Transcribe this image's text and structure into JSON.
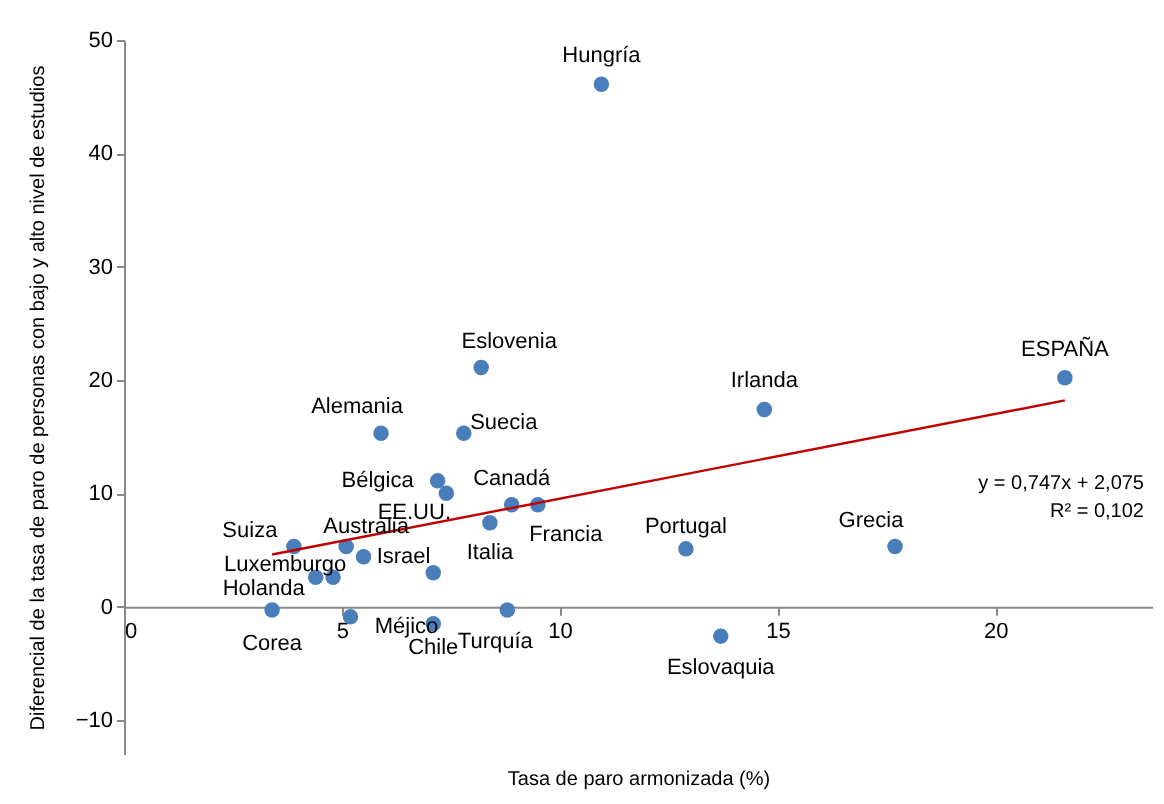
{
  "chart_data": {
    "type": "scatter",
    "xlabel": "Tasa de paro armonizada (%)",
    "ylabel": "Diferencial de la tasa de paro de personas con  bajo y alto  nivel de estudios",
    "xlim": [
      0,
      23.6
    ],
    "ylim": [
      -13,
      50
    ],
    "xticks": [
      0,
      5,
      10,
      15,
      20
    ],
    "yticks": [
      -10,
      0,
      10,
      20,
      30,
      40,
      50
    ],
    "grid": false,
    "marker": "circle",
    "series": [
      {
        "type": "scatter",
        "color": "#4a7ebb",
        "x": [
          10.96,
          8.2,
          21.6,
          14.7,
          5.9,
          7.8,
          7.2,
          7.4,
          8.9,
          9.5,
          8.4,
          12.9,
          17.7,
          3.9,
          5.1,
          5.5,
          4.8,
          4.4,
          3.4,
          5.2,
          7.1,
          8.8,
          13.7,
          7.1
        ],
        "values": [
          46.1,
          21.1,
          20.2,
          17.4,
          15.3,
          15.3,
          11.1,
          10.0,
          9.0,
          9.0,
          7.4,
          5.1,
          5.3,
          5.3,
          5.3,
          4.4,
          2.6,
          2.6,
          -0.3,
          -0.9,
          -1.5,
          -0.3,
          -2.6,
          3.0
        ]
      },
      {
        "type": "line",
        "marker": "none",
        "color": "#c00000",
        "x": [
          3.4,
          21.6
        ],
        "values": [
          4.6,
          18.2
        ]
      }
    ],
    "annotations": [
      {
        "text": "Hungría",
        "x": 10.96,
        "y": 46.1
      },
      {
        "text": "Eslovenia",
        "x": 8.2,
        "y": 21.1
      },
      {
        "text": "ESPAÑA",
        "x": 21.6,
        "y": 20.2
      },
      {
        "text": "Irlanda",
        "x": 14.7,
        "y": 17.4
      },
      {
        "text": "Alemania",
        "x": 5.9,
        "y": 15.3
      },
      {
        "text": "Suecia",
        "x": 7.8,
        "y": 15.3
      },
      {
        "text": "Bélgica",
        "x": 7.2,
        "y": 11.1
      },
      {
        "text": "EE.UU.",
        "x": 7.4,
        "y": 10.0
      },
      {
        "text": "Canadá",
        "x": 8.9,
        "y": 9.0
      },
      {
        "text": "Francia",
        "x": 9.5,
        "y": 9.0
      },
      {
        "text": "Italia",
        "x": 8.4,
        "y": 7.4
      },
      {
        "text": "Portugal",
        "x": 12.9,
        "y": 5.1
      },
      {
        "text": "Grecia",
        "x": 17.7,
        "y": 5.3
      },
      {
        "text": "Suiza",
        "x": 3.9,
        "y": 5.3
      },
      {
        "text": "Australia",
        "x": 5.1,
        "y": 5.3
      },
      {
        "text": "Israel",
        "x": 5.5,
        "y": 4.4
      },
      {
        "text": "Luxemburgo",
        "x": 4.8,
        "y": 2.6
      },
      {
        "text": "Holanda",
        "x": 4.4,
        "y": 2.6
      },
      {
        "text": "Corea",
        "x": 3.4,
        "y": -0.3
      },
      {
        "text": "Méjico",
        "x": 5.2,
        "y": -0.9
      },
      {
        "text": "Chile",
        "x": 7.1,
        "y": -1.5
      },
      {
        "text": "Turquía",
        "x": 8.8,
        "y": -0.3
      },
      {
        "text": "Eslovaquia",
        "x": 13.7,
        "y": -2.6
      },
      "y = 0,747x + 2,075",
      "R² = 0,102"
    ]
  }
}
